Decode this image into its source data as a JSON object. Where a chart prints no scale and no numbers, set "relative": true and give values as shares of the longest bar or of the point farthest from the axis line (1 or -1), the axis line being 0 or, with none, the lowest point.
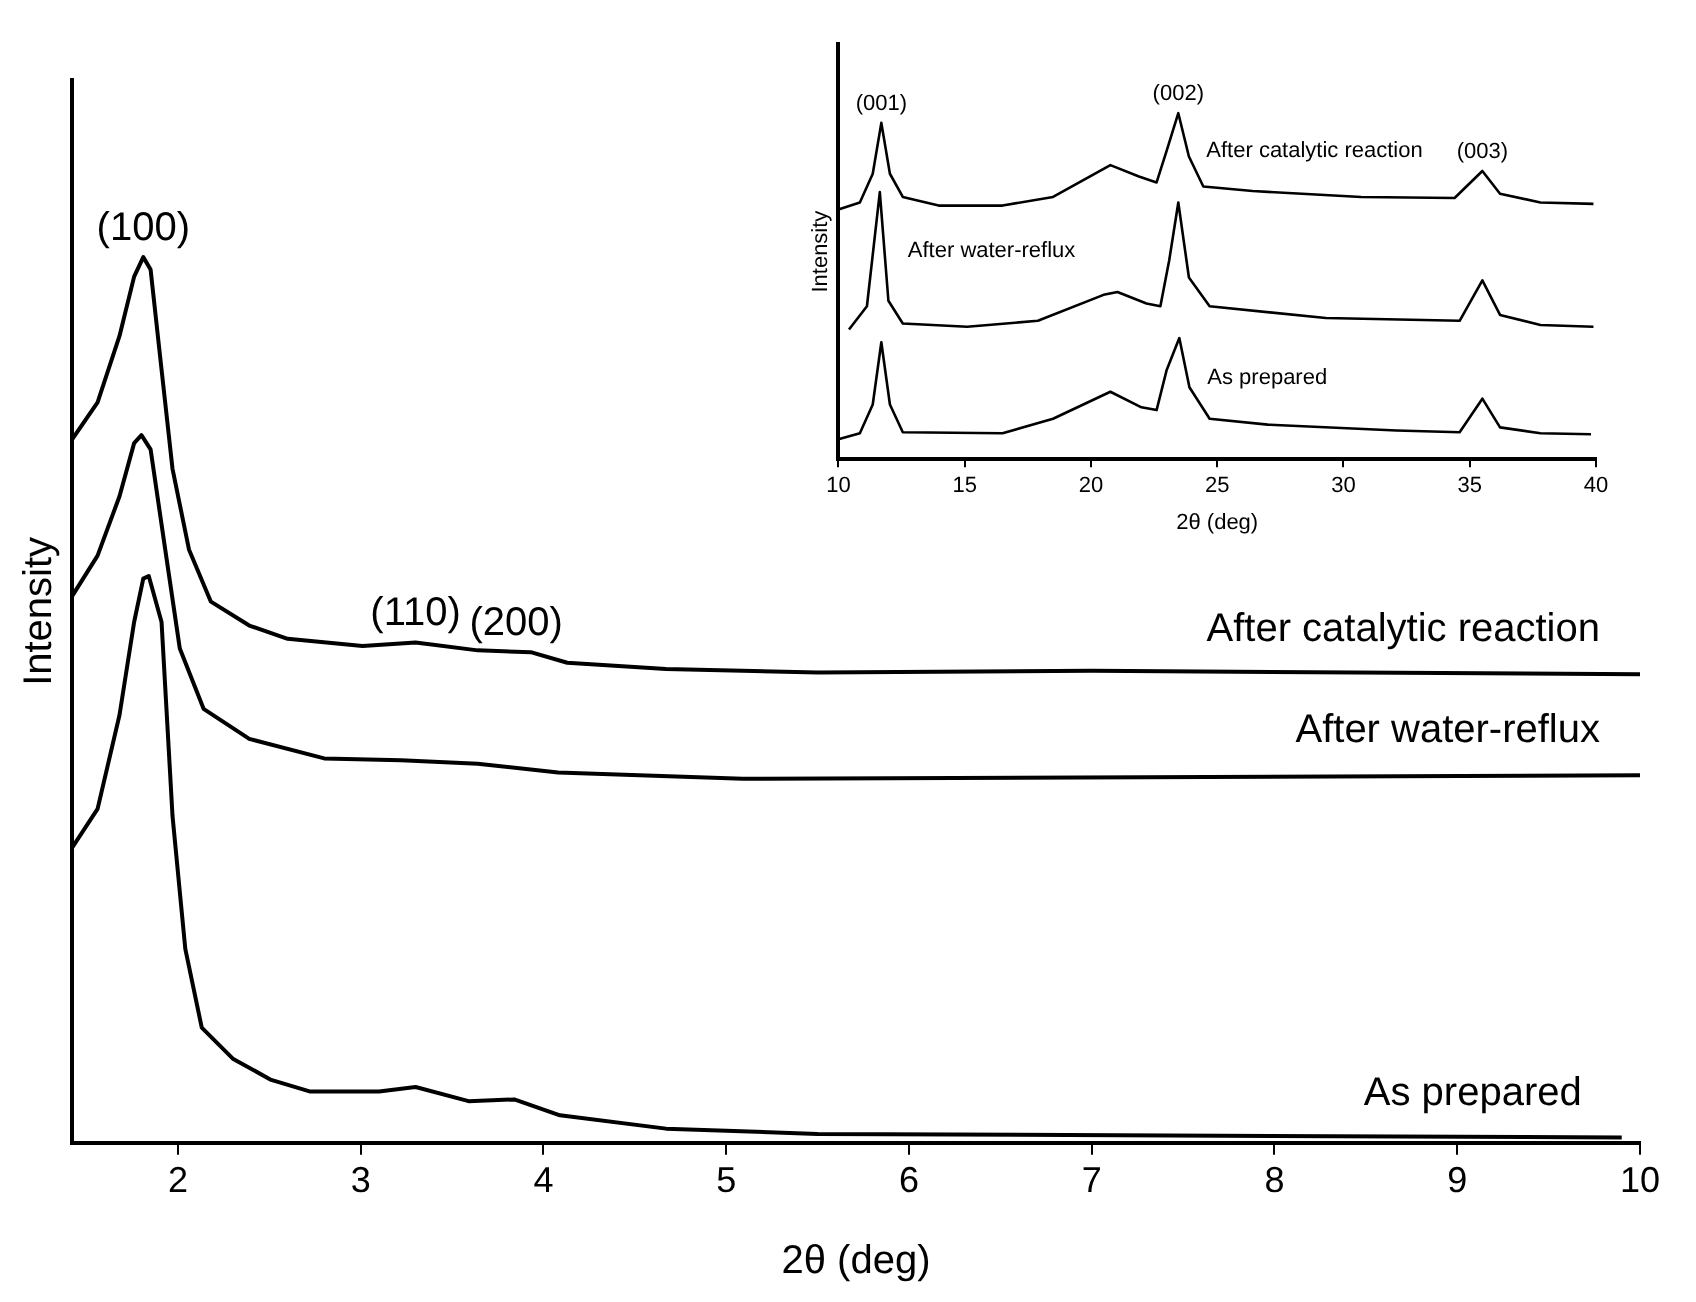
{
  "chart_data": [
    {
      "type": "line",
      "relative": true,
      "xlabel": "2θ (deg)",
      "ylabel": "Intensity",
      "xlim": [
        1.42,
        10
      ],
      "xticks": [
        2,
        3,
        4,
        5,
        6,
        7,
        8,
        9,
        10
      ],
      "tick_labels": "x",
      "grid": false,
      "legend": false,
      "marker": "none",
      "line_style": "solid",
      "annotations": [
        {
          "text": "(100)",
          "x": 1.81,
          "y": 1.0
        },
        {
          "text": "(110)",
          "x": 3.3,
          "y": 0.565
        },
        {
          "text": "(200)",
          "x": 3.85,
          "y": 0.554
        }
      ],
      "series": [
        {
          "name": "After catalytic reaction",
          "color": "#000000",
          "x": [
            1.42,
            1.56,
            1.68,
            1.76,
            1.81,
            1.85,
            1.91,
            1.97,
            2.06,
            2.18,
            2.39,
            2.6,
            3.01,
            3.3,
            3.64,
            3.93,
            4.13,
            4.67,
            5.5,
            7,
            10
          ],
          "values": [
            0.794,
            0.836,
            0.911,
            0.978,
            1.0,
            0.986,
            0.873,
            0.761,
            0.67,
            0.611,
            0.584,
            0.569,
            0.561,
            0.565,
            0.556,
            0.554,
            0.542,
            0.535,
            0.531,
            0.533,
            0.529
          ]
        },
        {
          "name": "After water-reflux",
          "color": "#000000",
          "x": [
            1.42,
            1.56,
            1.68,
            1.76,
            1.8,
            1.85,
            1.93,
            2.01,
            2.14,
            2.39,
            2.8,
            3.22,
            3.64,
            4.08,
            5.09,
            10
          ],
          "values": [
            0.617,
            0.663,
            0.73,
            0.79,
            0.799,
            0.783,
            0.67,
            0.558,
            0.49,
            0.456,
            0.434,
            0.432,
            0.428,
            0.418,
            0.411,
            0.415
          ]
        },
        {
          "name": "As prepared",
          "color": "#000000",
          "x": [
            1.42,
            1.56,
            1.68,
            1.76,
            1.81,
            1.84,
            1.91,
            1.97,
            2.04,
            2.13,
            2.3,
            2.51,
            2.72,
            3.1,
            3.3,
            3.59,
            3.84,
            4.09,
            4.67,
            5.5,
            9.9
          ],
          "values": [
            0.333,
            0.377,
            0.483,
            0.588,
            0.637,
            0.64,
            0.588,
            0.369,
            0.219,
            0.13,
            0.095,
            0.071,
            0.058,
            0.058,
            0.063,
            0.047,
            0.049,
            0.031,
            0.016,
            0.01,
            0.006
          ]
        }
      ]
    },
    {
      "type": "line",
      "relative": true,
      "xlabel": "2θ (deg)",
      "ylabel": "Intensity",
      "xlim": [
        10,
        40
      ],
      "xticks": [
        10,
        15,
        20,
        25,
        30,
        35,
        40
      ],
      "tick_labels": "x",
      "grid": false,
      "legend": false,
      "marker": "none",
      "line_style": "solid",
      "annotations": [
        {
          "text": "(001)",
          "x": 11.7,
          "y": 0.972
        },
        {
          "text": "(002)",
          "x": 23.46,
          "y": 1.0
        },
        {
          "text": "(003)",
          "x": 35.5,
          "y": 0.833
        }
      ],
      "series": [
        {
          "name": "After catalytic reaction",
          "color": "#000000",
          "x": [
            10,
            10.85,
            11.36,
            11.7,
            12.04,
            12.55,
            13.97,
            16.5,
            18.5,
            20.77,
            21.9,
            22.6,
            23.0,
            23.46,
            23.88,
            24.45,
            26.4,
            30.7,
            34.4,
            35.5,
            36.2,
            37.8,
            39.9
          ],
          "values": [
            0.722,
            0.742,
            0.825,
            0.972,
            0.825,
            0.758,
            0.733,
            0.733,
            0.758,
            0.85,
            0.817,
            0.8,
            0.892,
            1.0,
            0.875,
            0.788,
            0.775,
            0.758,
            0.755,
            0.833,
            0.767,
            0.742,
            0.738
          ]
        },
        {
          "name": "After water-reflux",
          "color": "#000000",
          "x": [
            10.42,
            11.13,
            11.64,
            11.98,
            12.55,
            15.1,
            17.9,
            20.5,
            21.05,
            22.2,
            22.75,
            23.1,
            23.46,
            23.88,
            24.7,
            29.3,
            34.6,
            35.5,
            36.2,
            37.8,
            39.9
          ],
          "values": [
            0.375,
            0.442,
            0.772,
            0.458,
            0.392,
            0.383,
            0.4,
            0.475,
            0.483,
            0.45,
            0.442,
            0.575,
            0.742,
            0.525,
            0.442,
            0.408,
            0.4,
            0.517,
            0.417,
            0.388,
            0.383
          ]
        },
        {
          "name": "As prepared",
          "color": "#000000",
          "x": [
            10,
            10.85,
            11.36,
            11.7,
            12.04,
            12.55,
            16.5,
            18.5,
            20.77,
            22.0,
            22.6,
            23.0,
            23.5,
            23.9,
            24.7,
            27.0,
            32.1,
            34.6,
            35.5,
            36.2,
            37.8,
            39.8
          ],
          "values": [
            0.058,
            0.075,
            0.158,
            0.338,
            0.158,
            0.078,
            0.075,
            0.117,
            0.195,
            0.15,
            0.142,
            0.258,
            0.35,
            0.208,
            0.117,
            0.1,
            0.083,
            0.078,
            0.175,
            0.092,
            0.075,
            0.072
          ]
        }
      ]
    }
  ]
}
